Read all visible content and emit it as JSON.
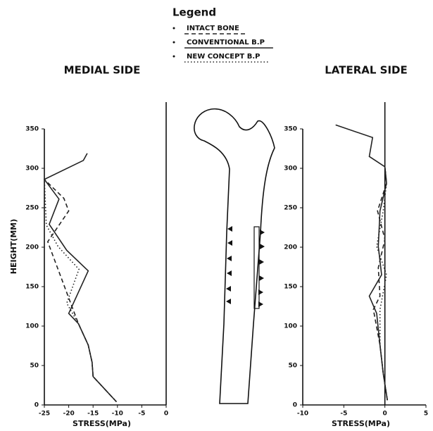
{
  "legend_title": "Legend",
  "chart_data": [
    {
      "type": "line",
      "title": "MEDIAL SIDE",
      "x_label": "STRESS(MPa)",
      "y_label": "HEIGHT(MM)",
      "xlim": [
        -25,
        0
      ],
      "xticks": [
        -25,
        -20,
        -15,
        -10,
        -5,
        0
      ],
      "ylim": [
        0,
        350
      ],
      "yticks": [
        0,
        50,
        100,
        150,
        200,
        250,
        300,
        350
      ],
      "series": [
        {
          "name": "INTACT BONE",
          "color": "#222222",
          "dash": "dashed",
          "x": [
            -10.2,
            -15,
            -15.2,
            -16,
            -18,
            -19.6,
            -24.3,
            -20,
            -21,
            -25
          ],
          "y": [
            4,
            36,
            54,
            76,
            103,
            129,
            207,
            246,
            262,
            286
          ]
        },
        {
          "name": "CONVENTIONAL B.P",
          "color": "#222222",
          "dash": "solid",
          "x": [
            -10.2,
            -15,
            -15.2,
            -16,
            -18,
            -20,
            -16,
            -20.4,
            -24,
            -22,
            -25,
            -17,
            -16.2
          ],
          "y": [
            4,
            36,
            54,
            76,
            103,
            116,
            170,
            196,
            229,
            261,
            286,
            310,
            319
          ]
        },
        {
          "name": "NEW CONCEPT B.P",
          "color": "#222222",
          "dash": "dotted",
          "x": [
            -10.2,
            -15,
            -15.2,
            -16,
            -18,
            -20.4,
            -17.9,
            -22.2,
            -24.6,
            -25
          ],
          "y": [
            4,
            36,
            54,
            76,
            103,
            129,
            172,
            201,
            228,
            286
          ]
        }
      ]
    },
    {
      "type": "line",
      "title": "LATERAL SIDE",
      "x_label": "STRESS(MPa)",
      "xlim": [
        -10,
        5
      ],
      "xticks": [
        -10,
        -5,
        0,
        5
      ],
      "ylim": [
        0,
        350
      ],
      "yticks": [
        0,
        50,
        100,
        150,
        200,
        250,
        300,
        350
      ],
      "series": [
        {
          "color": "#222222",
          "dash": "dashed",
          "x": [
            0.3,
            -0.2,
            -0.6,
            -1.4,
            -0.6,
            -0.8,
            0,
            -0.9,
            0.2,
            0
          ],
          "y": [
            6,
            40,
            76,
            121,
            138,
            174,
            210,
            246,
            281,
            302
          ]
        },
        {
          "color": "#222222",
          "dash": "solid",
          "x": [
            0.3,
            -0.2,
            -0.6,
            -1,
            -1.9,
            -0.4,
            -0.8,
            -0.6,
            0.2,
            0,
            -1.9,
            -1.5,
            -6
          ],
          "y": [
            6,
            40,
            76,
            116,
            138,
            165,
            201,
            246,
            281,
            302,
            315,
            339,
            355
          ]
        },
        {
          "color": "#222222",
          "dash": "dotted",
          "x": [
            0.3,
            -0.2,
            -0.6,
            -0.6,
            0.2,
            -1,
            -0.2,
            0.2,
            0
          ],
          "y": [
            6,
            40,
            76,
            121,
            165,
            201,
            246,
            281,
            302
          ]
        }
      ]
    }
  ]
}
